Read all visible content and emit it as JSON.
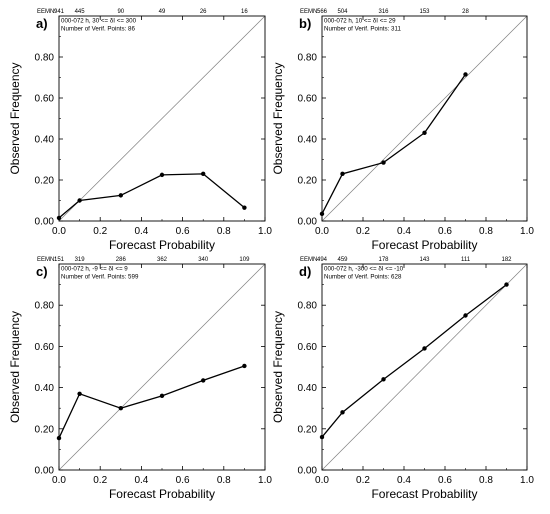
{
  "axes": {
    "xlabel": "Forecast Probability",
    "ylabel": "Observed Frequency",
    "x_ticks": [
      "0.0",
      "0.2",
      "0.4",
      "0.6",
      "0.8",
      "1.0"
    ],
    "y_ticks": [
      "0.00",
      "0.20",
      "0.40",
      "0.60",
      "0.80"
    ]
  },
  "eemn_label": "EEMN:",
  "colors": {
    "line": "#000000",
    "diagonal": "#808080",
    "background": "#ffffff"
  },
  "chart_data": [
    {
      "type": "line",
      "panel": "a)",
      "xlabel": "Forecast Probability",
      "ylabel": "Observed Frequency",
      "xlim": [
        0,
        1
      ],
      "ylim": [
        0,
        1
      ],
      "annotation_1": "000-072 h, 30 <= δI <= 300",
      "annotation_2": "Number of Verif. Points: 86",
      "eemn": [
        "941",
        "445",
        "90",
        "49",
        "26",
        "16"
      ],
      "x": [
        0.0,
        0.1,
        0.3,
        0.5,
        0.7,
        0.9
      ],
      "y": [
        0.015,
        0.1,
        0.125,
        0.225,
        0.23,
        0.065
      ]
    },
    {
      "type": "line",
      "panel": "b)",
      "xlabel": "Forecast Probability",
      "ylabel": "Observed Frequency",
      "xlim": [
        0,
        1
      ],
      "ylim": [
        0,
        1
      ],
      "annotation_1": "000-072 h, 10 <= δI <= 29",
      "annotation_2": "Number of Verif. Points: 311",
      "eemn": [
        "566",
        "504",
        "316",
        "153",
        "28"
      ],
      "x": [
        0.0,
        0.1,
        0.3,
        0.5,
        0.7
      ],
      "y": [
        0.035,
        0.23,
        0.285,
        0.43,
        0.715
      ]
    },
    {
      "type": "line",
      "panel": "c)",
      "xlabel": "Forecast Probability",
      "ylabel": "Observed Frequency",
      "xlim": [
        0,
        1
      ],
      "ylim": [
        0,
        1
      ],
      "annotation_1": "000-072 h, -9 <= δI <= 9",
      "annotation_2": "Number of Verif. Points: 599",
      "eemn": [
        "151",
        "319",
        "286",
        "362",
        "340",
        "109"
      ],
      "x": [
        0.0,
        0.1,
        0.3,
        0.5,
        0.7,
        0.9
      ],
      "y": [
        0.155,
        0.37,
        0.3,
        0.36,
        0.435,
        0.505
      ]
    },
    {
      "type": "line",
      "panel": "d)",
      "xlabel": "Forecast Probability",
      "ylabel": "Observed Frequency",
      "xlim": [
        0,
        1
      ],
      "ylim": [
        0,
        1
      ],
      "annotation_1": "000-072 h, -300 <= δI <= -10",
      "annotation_2": "Number of Verif. Points: 628",
      "eemn": [
        "494",
        "459",
        "178",
        "143",
        "111",
        "182"
      ],
      "x": [
        0.0,
        0.1,
        0.3,
        0.5,
        0.7,
        0.9
      ],
      "y": [
        0.16,
        0.28,
        0.44,
        0.59,
        0.75,
        0.9
      ]
    }
  ]
}
